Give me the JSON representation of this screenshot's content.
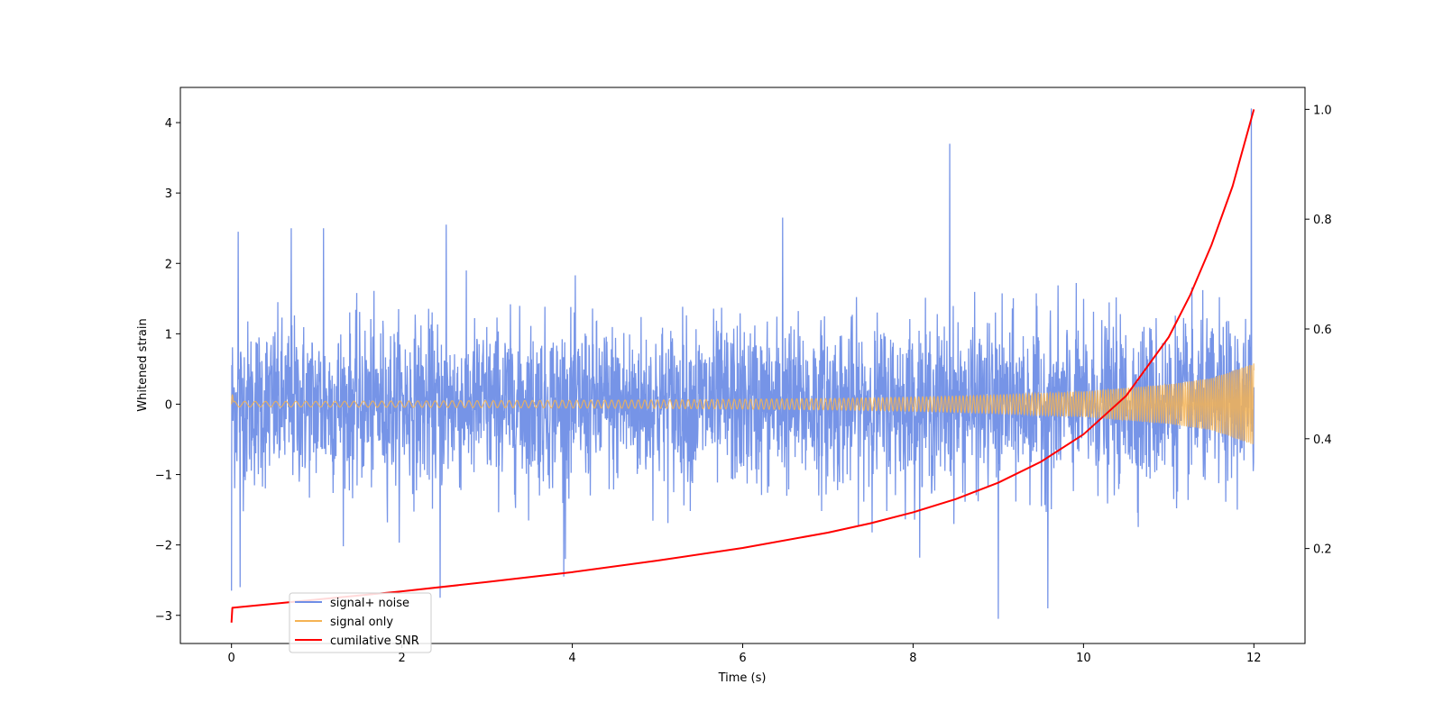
{
  "chart_data": {
    "type": "line",
    "title": "",
    "xlabel": "Time (s)",
    "ylabel": "Whitened strain",
    "y2label": "",
    "xlim": [
      -0.6,
      12.6
    ],
    "ylim": [
      -3.4,
      4.5
    ],
    "y2lim": [
      0.027,
      1.04
    ],
    "grid": false,
    "legend_position": "lower-left",
    "x_ticks": [
      0,
      2,
      4,
      6,
      8,
      10,
      12
    ],
    "x_tick_labels": [
      "0",
      "2",
      "4",
      "6",
      "8",
      "10",
      "12"
    ],
    "y_ticks": [
      -3,
      -2,
      -1,
      0,
      1,
      2,
      3,
      4
    ],
    "y_tick_labels": [
      "−3",
      "−2",
      "−1",
      "0",
      "1",
      "2",
      "3",
      "4"
    ],
    "y2_ticks": [
      0.2,
      0.4,
      0.6,
      0.8,
      1.0
    ],
    "y2_tick_labels": [
      "0.2",
      "0.4",
      "0.6",
      "0.8",
      "1.0"
    ],
    "series": [
      {
        "name": "signal+ noise",
        "color": "#6f8ee6",
        "axis": "left",
        "x_range": [
          0,
          12
        ],
        "typical_range": [
          -1.5,
          1.6
        ],
        "peaks": [
          {
            "x": 0.08,
            "y": 2.45
          },
          {
            "x": 0.7,
            "y": 2.5
          },
          {
            "x": 1.08,
            "y": 2.5
          },
          {
            "x": 2.52,
            "y": 2.55
          },
          {
            "x": 6.47,
            "y": 2.65
          },
          {
            "x": 8.43,
            "y": 3.7
          },
          {
            "x": 11.97,
            "y": 4.2
          }
        ],
        "troughs": [
          {
            "x": 0.0,
            "y": -2.65
          },
          {
            "x": 0.1,
            "y": -2.6
          },
          {
            "x": 2.45,
            "y": -2.75
          },
          {
            "x": 3.9,
            "y": -2.45
          },
          {
            "x": 9.0,
            "y": -3.05
          },
          {
            "x": 9.58,
            "y": -2.9
          }
        ]
      },
      {
        "name": "signal only",
        "color": "#f5b354",
        "axis": "left",
        "x": [
          0,
          0.02,
          1,
          2,
          3,
          4,
          5,
          6,
          7,
          8,
          9,
          10,
          11,
          11.5,
          12
        ],
        "amplitude": [
          0.5,
          0.04,
          0.04,
          0.045,
          0.05,
          0.055,
          0.06,
          0.07,
          0.08,
          0.1,
          0.13,
          0.18,
          0.28,
          0.37,
          0.58
        ]
      },
      {
        "name": "cumilative SNR",
        "color": "#ff0000",
        "axis": "right",
        "x": [
          0,
          0.01,
          1,
          2,
          3,
          4,
          5,
          6,
          7,
          7.5,
          8,
          8.5,
          9,
          9.5,
          10,
          10.5,
          11,
          11.25,
          11.5,
          11.75,
          12
        ],
        "y": [
          0.065,
          0.092,
          0.107,
          0.122,
          0.139,
          0.157,
          0.178,
          0.201,
          0.229,
          0.246,
          0.266,
          0.29,
          0.32,
          0.358,
          0.408,
          0.478,
          0.585,
          0.661,
          0.752,
          0.86,
          1.0
        ]
      }
    ]
  }
}
